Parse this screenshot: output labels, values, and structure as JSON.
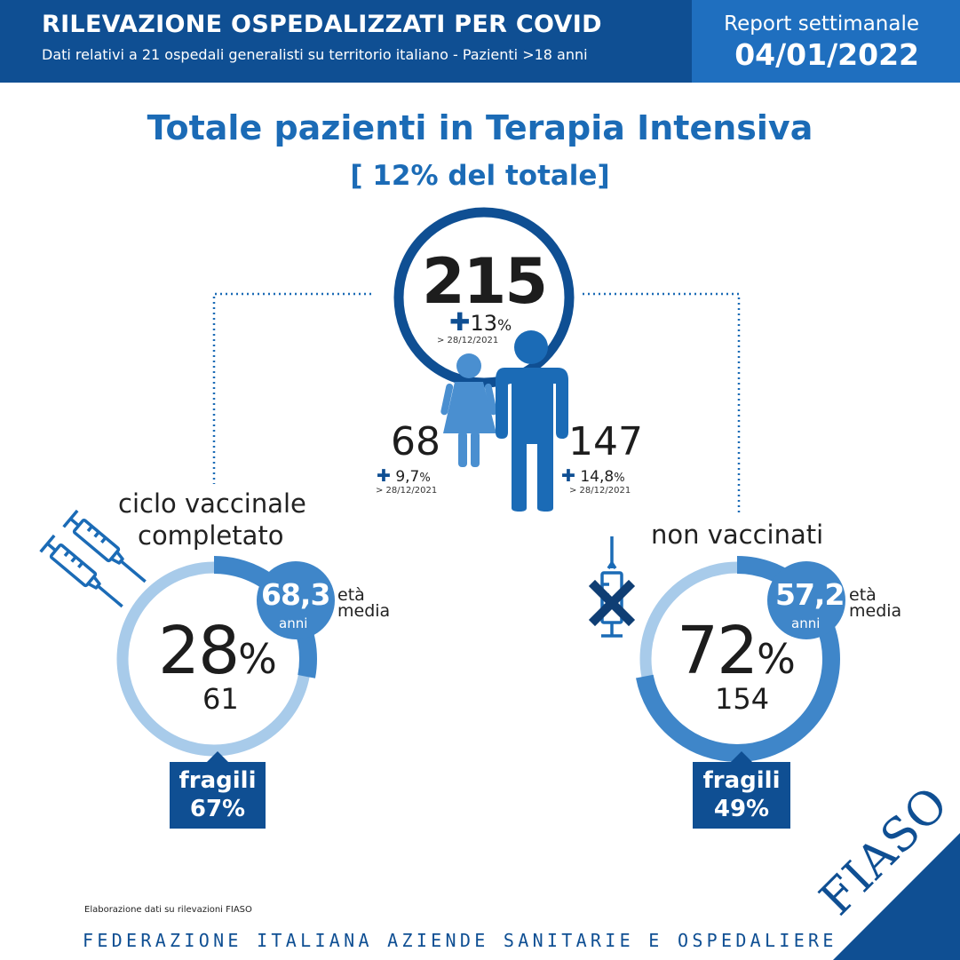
{
  "header": {
    "title": "RILEVAZIONE OSPEDALIZZATI PER COVID",
    "subtitle": "Dati relativi a 21 ospedali generalisti su territorio italiano - Pazienti >18 anni",
    "report_label": "Report settimanale",
    "report_date": "04/01/2022"
  },
  "main": {
    "title": "Totale pazienti in Terapia Intensiva",
    "subtitle": "[ 12% del totale]"
  },
  "total": {
    "value": "215",
    "plus": "✚",
    "change": "13",
    "pct": "%",
    "ref": "> 28/12/2021"
  },
  "women": {
    "value": "68",
    "plus": "✚",
    "change": " 9,7",
    "pct": "%",
    "ref": "> 28/12/2021"
  },
  "men": {
    "value": "147",
    "plus": "✚",
    "change": " 14,8",
    "pct": "%",
    "ref": "> 28/12/2021"
  },
  "vaccinated": {
    "label_line1": "ciclo vaccinale",
    "label_line2": "completato",
    "percent": "28",
    "pct_sign": "%",
    "share": 0.28,
    "count": "61",
    "age": "68,3",
    "age_unit": "anni",
    "age_caption_1": "età",
    "age_caption_2": "media",
    "frail_label": "fragili",
    "frail_value": "67%"
  },
  "unvaccinated": {
    "label": "non vaccinati",
    "percent": "72",
    "pct_sign": "%",
    "share": 0.72,
    "count": "154",
    "age": "57,2",
    "age_unit": "anni",
    "age_caption_1": "età",
    "age_caption_2": "media",
    "frail_label": "fragili",
    "frail_value": "49%"
  },
  "footnote": "Elaborazione dati su rilevazioni FIASO",
  "footer": "FEDERAZIONE ITALIANA AZIENDE SANITARIE E OSPEDALIERE",
  "logo": "FIASO",
  "colors": {
    "dark_blue": "#0f4f93",
    "mid_blue": "#1f6fbf",
    "ring_dark": "#3f86c9",
    "ring_light": "#a8cbea",
    "woman_figure": "#4a8fd0",
    "man_figure": "#1b6bb6",
    "title_blue": "#1b6bb6"
  },
  "icons": [
    "syringe-icon",
    "crossed-syringe-icon",
    "woman-figure-icon",
    "man-figure-icon"
  ]
}
